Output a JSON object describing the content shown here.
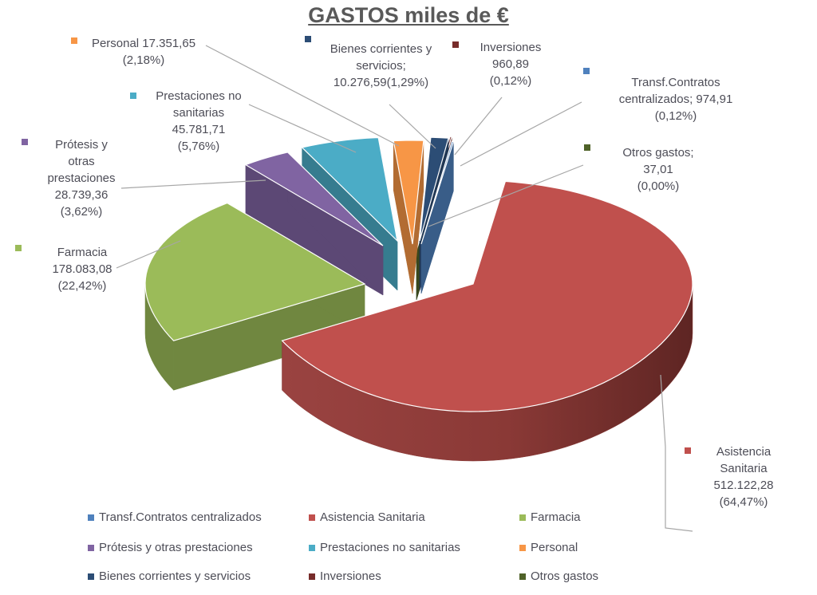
{
  "title": "GASTOS miles de €",
  "chart_data": {
    "type": "pie",
    "title": "GASTOS miles de €",
    "unit": "miles de €",
    "style": "3d-exploded-pie",
    "legend_position": "bottom",
    "slices": [
      {
        "label": "Transf.Contratos centralizados",
        "value": "974,91",
        "value_num": 974.91,
        "pct": 0.12,
        "pct_label": "(0,12%)",
        "color": "#4F81BD"
      },
      {
        "label": "Asistencia Sanitaria",
        "value": "512.122,28",
        "value_num": 512122.28,
        "pct": 64.47,
        "pct_label": "(64,47%)",
        "color": "#C0504D"
      },
      {
        "label": "Farmacia",
        "value": "178.083,08",
        "value_num": 178083.08,
        "pct": 22.42,
        "pct_label": "(22,42%)",
        "color": "#9BBB59"
      },
      {
        "label": "Prótesis y otras prestaciones",
        "value": "28.739,36",
        "value_num": 28739.36,
        "pct": 3.62,
        "pct_label": "(3,62%)",
        "color": "#8064A2"
      },
      {
        "label": "Prestaciones no sanitarias",
        "value": "45.781,71",
        "value_num": 45781.71,
        "pct": 5.76,
        "pct_label": "(5,76%)",
        "color": "#4BACC6"
      },
      {
        "label": "Personal",
        "value": "17.351,65",
        "value_num": 17351.65,
        "pct": 2.18,
        "pct_label": "(2,18%)",
        "color": "#F79646"
      },
      {
        "label": "Bienes corrientes y servicios",
        "value": "10.276,59",
        "value_num": 10276.59,
        "pct": 1.29,
        "pct_label": "(1,29%)",
        "color": "#2C4D75"
      },
      {
        "label": "Inversiones",
        "value": "960,89",
        "value_num": 960.89,
        "pct": 0.12,
        "pct_label": "(0,12%)",
        "color": "#772C2A"
      },
      {
        "label": "Otros gastos",
        "value": "37,01",
        "value_num": 37.01,
        "pct": 0.0,
        "pct_label": "(0,00%)",
        "color": "#4F6228"
      }
    ]
  },
  "callouts": [
    {
      "key": "personal",
      "slice": 5,
      "lines": [
        "Personal 17.351,65",
        "(2,18%)"
      ]
    },
    {
      "key": "prestaciones",
      "slice": 4,
      "lines": [
        "Prestaciones no",
        "sanitarias",
        "45.781,71",
        "(5,76%)"
      ]
    },
    {
      "key": "protesis",
      "slice": 3,
      "lines": [
        "Prótesis y",
        "otras",
        "prestaciones",
        "28.739,36",
        "(3,62%)"
      ]
    },
    {
      "key": "farmacia",
      "slice": 2,
      "lines": [
        "Farmacia",
        "178.083,08",
        "(22,42%)"
      ]
    },
    {
      "key": "bienes",
      "slice": 6,
      "lines": [
        "Bienes corrientes y",
        "servicios;",
        "10.276,59(1,29%)"
      ]
    },
    {
      "key": "inversiones",
      "slice": 7,
      "lines": [
        "Inversiones",
        "960,89",
        "(0,12%)"
      ]
    },
    {
      "key": "transf",
      "slice": 0,
      "lines": [
        "Transf.Contratos",
        "centralizados; 974,91",
        "(0,12%)"
      ]
    },
    {
      "key": "otros",
      "slice": 8,
      "lines": [
        "Otros gastos;",
        "37,01",
        "(0,00%)"
      ]
    },
    {
      "key": "asistencia",
      "slice": 1,
      "lines": [
        "Asistencia",
        "Sanitaria",
        "512.122,28",
        "(64,47%)"
      ]
    }
  ],
  "legend": {
    "rows": [
      [
        0,
        1,
        2
      ],
      [
        3,
        4,
        5
      ],
      [
        6,
        7,
        8
      ]
    ]
  }
}
